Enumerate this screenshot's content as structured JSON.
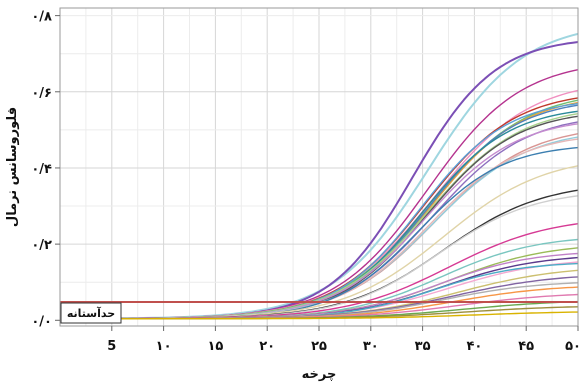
{
  "chart_data": {
    "type": "line",
    "title": "",
    "xlabel": "چرخه",
    "ylabel": "فلوروسانس نرمال",
    "xlim": [
      0,
      50
    ],
    "ylim": [
      -0.015,
      0.82
    ],
    "grid": true,
    "x_ticks": [
      {
        "value": 5,
        "label": "5"
      },
      {
        "value": 10,
        "label": "۱۰"
      },
      {
        "value": 15,
        "label": "۱۵"
      },
      {
        "value": 20,
        "label": "۲۰"
      },
      {
        "value": 25,
        "label": "۲۵"
      },
      {
        "value": 30,
        "label": "۳۰"
      },
      {
        "value": 35,
        "label": "۳۵"
      },
      {
        "value": 40,
        "label": "۴۰"
      },
      {
        "value": 45,
        "label": "۴۵"
      },
      {
        "value": 50,
        "label": "۵۰"
      }
    ],
    "y_ticks": [
      {
        "value": 0.0,
        "label": "۰/۰"
      },
      {
        "value": 0.2,
        "label": "۰/۲"
      },
      {
        "value": 0.4,
        "label": "۰/۴"
      },
      {
        "value": 0.6,
        "label": "۰/۶"
      },
      {
        "value": 0.8,
        "label": "۰/۸"
      }
    ],
    "threshold": {
      "value": 0.048,
      "label": "حدآستانه",
      "color": "#c0504d"
    },
    "series": [
      {
        "color": "#9fd6e0",
        "plateau": 0.78,
        "midpoint": 35.5,
        "slope": 4.6
      },
      {
        "color": "#7b4fb5",
        "plateau": 0.74,
        "midpoint": 34.0,
        "slope": 4.0
      },
      {
        "color": "#b5338f",
        "plateau": 0.68,
        "midpoint": 35.5,
        "slope": 4.5
      },
      {
        "color": "#f08fc0",
        "plateau": 0.63,
        "midpoint": 36.0,
        "slope": 4.7
      },
      {
        "color": "#c0392b",
        "plateau": 0.6,
        "midpoint": 35.2,
        "slope": 4.4
      },
      {
        "color": "#6fbf73",
        "plateau": 0.6,
        "midpoint": 35.8,
        "slope": 4.6
      },
      {
        "color": "#e8a43c",
        "plateau": 0.59,
        "midpoint": 35.8,
        "slope": 4.4
      },
      {
        "color": "#5aa0d8",
        "plateau": 0.58,
        "midpoint": 34.8,
        "slope": 4.2
      },
      {
        "color": "#4f81bd",
        "plateau": 0.58,
        "midpoint": 35.5,
        "slope": 4.3
      },
      {
        "color": "#2b8a9a",
        "plateau": 0.56,
        "midpoint": 35.0,
        "slope": 4.2
      },
      {
        "color": "#a9d18e",
        "plateau": 0.56,
        "midpoint": 35.5,
        "slope": 4.5
      },
      {
        "color": "#8e6fbf",
        "plateau": 0.54,
        "midpoint": 36.0,
        "slope": 4.5
      },
      {
        "color": "#555555",
        "plateau": 0.55,
        "midpoint": 35.5,
        "slope": 4.3
      },
      {
        "color": "#c58ccf",
        "plateau": 0.53,
        "midpoint": 35.3,
        "slope": 4.4
      },
      {
        "color": "#d99694",
        "plateau": 0.51,
        "midpoint": 36.2,
        "slope": 4.6
      },
      {
        "color": "#92cddc",
        "plateau": 0.5,
        "midpoint": 36.0,
        "slope": 4.6
      },
      {
        "color": "#e6b8b7",
        "plateau": 0.49,
        "midpoint": 35.6,
        "slope": 4.4
      },
      {
        "color": "#3c7fb0",
        "plateau": 0.46,
        "midpoint": 34.6,
        "slope": 4.1
      },
      {
        "color": "#e0d4a8",
        "plateau": 0.43,
        "midpoint": 37.0,
        "slope": 4.9
      },
      {
        "color": "#333333",
        "plateau": 0.36,
        "midpoint": 37.0,
        "slope": 4.8
      },
      {
        "color": "#cfcfcf",
        "plateau": 0.34,
        "midpoint": 36.5,
        "slope": 4.6
      },
      {
        "color": "#d63a94",
        "plateau": 0.27,
        "midpoint": 37.5,
        "slope": 5.0
      },
      {
        "color": "#7ac6c0",
        "plateau": 0.22,
        "midpoint": 36.8,
        "slope": 4.6
      },
      {
        "color": "#9bbb59",
        "plateau": 0.2,
        "midpoint": 37.5,
        "slope": 4.8
      },
      {
        "color": "#c080c8",
        "plateau": 0.18,
        "midpoint": 36.5,
        "slope": 4.5
      },
      {
        "color": "#5b3a8c",
        "plateau": 0.17,
        "midpoint": 37.0,
        "slope": 4.6
      },
      {
        "color": "#f4a7d0",
        "plateau": 0.16,
        "midpoint": 37.5,
        "slope": 4.8
      },
      {
        "color": "#4bacc6",
        "plateau": 0.15,
        "midpoint": 36.0,
        "slope": 4.2
      },
      {
        "color": "#ccc070",
        "plateau": 0.14,
        "midpoint": 38.5,
        "slope": 5.0
      },
      {
        "color": "#8064a2",
        "plateau": 0.12,
        "midpoint": 38.0,
        "slope": 5.0
      },
      {
        "color": "#b0b0b0",
        "plateau": 0.1,
        "midpoint": 37.0,
        "slope": 4.6
      },
      {
        "color": "#f79646",
        "plateau": 0.09,
        "midpoint": 38.0,
        "slope": 4.8
      },
      {
        "color": "#e07ab0",
        "plateau": 0.07,
        "midpoint": 38.5,
        "slope": 5.0
      },
      {
        "color": "#6aa84f",
        "plateau": 0.05,
        "midpoint": 39.0,
        "slope": 5.0
      },
      {
        "color": "#9c8f3c",
        "plateau": 0.035,
        "midpoint": 39.0,
        "slope": 5.0
      },
      {
        "color": "#d9b300",
        "plateau": 0.02,
        "midpoint": 40.0,
        "slope": 5.0
      }
    ]
  }
}
